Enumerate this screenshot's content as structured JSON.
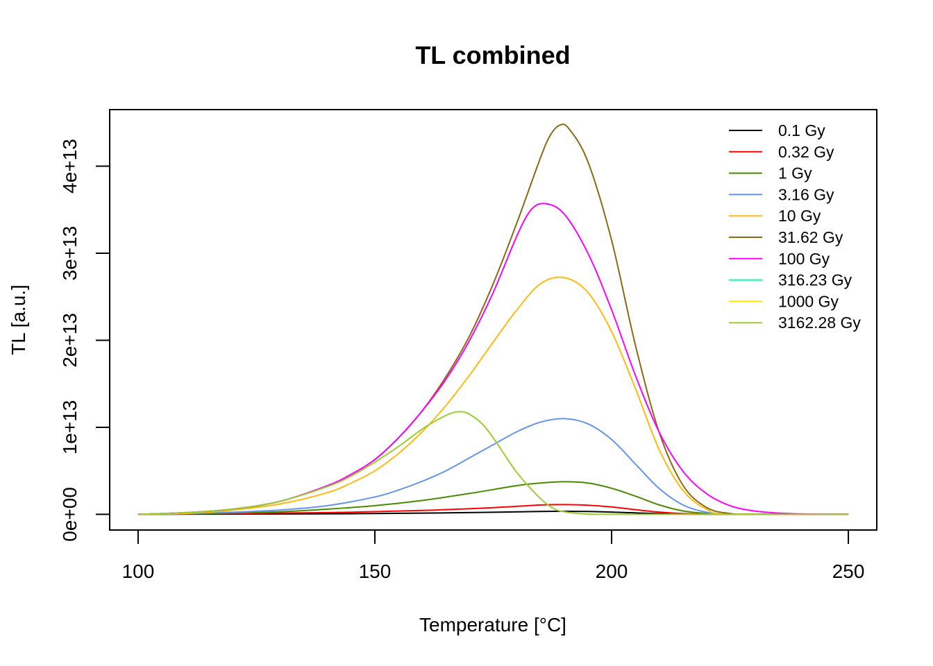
{
  "chart_data": {
    "type": "line",
    "title": "TL combined",
    "xlabel": "Temperature [°C]",
    "ylabel": "TL [a.u.]",
    "xlim": [
      94,
      256
    ],
    "ylim": [
      -1800000000000.0,
      46500000000000.0
    ],
    "x_ticks": [
      100,
      150,
      200,
      250
    ],
    "x_tick_labels": [
      "100",
      "150",
      "200",
      "250"
    ],
    "y_ticks": [
      0,
      10000000000000.0,
      20000000000000.0,
      30000000000000.0,
      40000000000000.0
    ],
    "y_tick_labels": [
      "0e+00",
      "1e+13",
      "2e+13",
      "3e+13",
      "4e+13"
    ],
    "legend_position": "top-right",
    "grid": false,
    "series": [
      {
        "name": "0.1 Gy",
        "color": "#000000",
        "x": [
          100,
          120,
          140,
          160,
          175,
          185,
          190,
          195,
          200,
          205,
          210,
          215,
          220,
          225,
          250
        ],
        "y": [
          0,
          30000000000.0,
          60000000000.0,
          140000000000.0,
          240000000000.0,
          330000000000.0,
          350000000000.0,
          330000000000.0,
          260000000000.0,
          170000000000.0,
          80000000000.0,
          30000000000.0,
          8000000000.0,
          0,
          0
        ]
      },
      {
        "name": "0.32 Gy",
        "color": "#ff0000",
        "x": [
          100,
          120,
          140,
          160,
          175,
          185,
          190,
          195,
          200,
          205,
          210,
          215,
          220,
          225,
          250
        ],
        "y": [
          0,
          100000000000.0,
          200000000000.0,
          450000000000.0,
          770000000000.0,
          1080000000000.0,
          1120000000000.0,
          1050000000000.0,
          850000000000.0,
          540000000000.0,
          260000000000.0,
          90000000000.0,
          25000000000.0,
          0,
          0
        ]
      },
      {
        "name": "1 Gy",
        "color": "#4a8a00",
        "x": [
          100,
          110,
          120,
          130,
          140,
          150,
          160,
          170,
          180,
          185,
          190,
          195,
          200,
          205,
          210,
          215,
          220,
          225,
          250
        ],
        "y": [
          0,
          50000000000.0,
          150000000000.0,
          300000000000.0,
          600000000000.0,
          1000000000000.0,
          1600000000000.0,
          2400000000000.0,
          3300000000000.0,
          3600000000000.0,
          3750000000000.0,
          3600000000000.0,
          3000000000000.0,
          2100000000000.0,
          1100000000000.0,
          400000000000.0,
          100000000000.0,
          10000000000.0,
          0
        ]
      },
      {
        "name": "3.16 Gy",
        "color": "#6495ed",
        "x": [
          100,
          110,
          120,
          130,
          140,
          150,
          155,
          160,
          165,
          170,
          175,
          180,
          185,
          190,
          195,
          200,
          205,
          210,
          215,
          220,
          225,
          250
        ],
        "y": [
          0,
          100000000000.0,
          250000000000.0,
          500000000000.0,
          1000000000000.0,
          2000000000000.0,
          2800000000000.0,
          3800000000000.0,
          5000000000000.0,
          6500000000000.0,
          8000000000000.0,
          9500000000000.0,
          10600000000000.0,
          11000000000000.0,
          10400000000000.0,
          8600000000000.0,
          5800000000000.0,
          3000000000000.0,
          1100000000000.0,
          250000000000.0,
          30000000000.0,
          0
        ]
      },
      {
        "name": "10 Gy",
        "color": "#ffb90f",
        "x": [
          100,
          110,
          120,
          130,
          140,
          145,
          150,
          155,
          160,
          165,
          170,
          175,
          180,
          185,
          190,
          195,
          200,
          205,
          210,
          215,
          220,
          225,
          250
        ],
        "y": [
          0,
          100000000000.0,
          500000000000.0,
          1200000000000.0,
          2500000000000.0,
          3600000000000.0,
          5000000000000.0,
          7000000000000.0,
          9500000000000.0,
          12500000000000.0,
          16000000000000.0,
          19800000000000.0,
          23500000000000.0,
          26500000000000.0,
          27200000000000.0,
          25500000000000.0,
          21000000000000.0,
          14500000000000.0,
          7500000000000.0,
          2800000000000.0,
          600000000000.0,
          50000000000.0,
          0
        ]
      },
      {
        "name": "31.62 Gy",
        "color": "#8b6914",
        "x": [
          100,
          110,
          120,
          130,
          140,
          145,
          150,
          155,
          160,
          165,
          170,
          175,
          180,
          185,
          187,
          189,
          191,
          195,
          200,
          205,
          210,
          215,
          220,
          225,
          230,
          250
        ],
        "y": [
          0,
          200000000000.0,
          600000000000.0,
          1500000000000.0,
          3300000000000.0,
          4600000000000.0,
          6300000000000.0,
          8800000000000.0,
          11900000000000.0,
          15800000000000.0,
          20500000000000.0,
          26500000000000.0,
          33500000000000.0,
          41000000000000.0,
          43500000000000.0,
          44700000000000.0,
          44300000000000.0,
          40500000000000.0,
          31500000000000.0,
          19500000000000.0,
          9500000000000.0,
          3400000000000.0,
          800000000000.0,
          100000000000.0,
          0,
          0
        ]
      },
      {
        "name": "100 Gy",
        "color": "#ff00ff",
        "x": [
          100,
          110,
          120,
          130,
          140,
          145,
          150,
          155,
          160,
          165,
          170,
          175,
          180,
          183,
          186,
          190,
          195,
          200,
          205,
          210,
          215,
          220,
          225,
          230,
          235,
          240,
          245,
          250
        ],
        "y": [
          0,
          200000000000.0,
          600000000000.0,
          1500000000000.0,
          3300000000000.0,
          4600000000000.0,
          6300000000000.0,
          8800000000000.0,
          11900000000000.0,
          15500000000000.0,
          20000000000000.0,
          25500000000000.0,
          32000000000000.0,
          35000000000000.0,
          35700000000000.0,
          34500000000000.0,
          30000000000000.0,
          23500000000000.0,
          16000000000000.0,
          9500000000000.0,
          5000000000000.0,
          2400000000000.0,
          1000000000000.0,
          400000000000.0,
          150000000000.0,
          50000000000.0,
          10000000000.0,
          0
        ]
      },
      {
        "name": "316.23 Gy",
        "color": "#00ff9f",
        "x": [],
        "y": []
      },
      {
        "name": "1000 Gy",
        "color": "#ffe700",
        "x": [],
        "y": []
      },
      {
        "name": "3162.28 Gy",
        "color": "#9acd32",
        "x": [
          100,
          110,
          120,
          130,
          140,
          145,
          150,
          155,
          160,
          163,
          166,
          168,
          170,
          173,
          176,
          180,
          185,
          188,
          190,
          193,
          196,
          200,
          250
        ],
        "y": [
          0,
          200000000000.0,
          600000000000.0,
          1500000000000.0,
          3200000000000.0,
          4400000000000.0,
          6000000000000.0,
          7800000000000.0,
          9800000000000.0,
          10800000000000.0,
          11600000000000.0,
          11800000000000.0,
          11500000000000.0,
          10200000000000.0,
          8000000000000.0,
          4800000000000.0,
          1800000000000.0,
          600000000000.0,
          300000000000.0,
          100000000000.0,
          20000000000.0,
          0,
          0
        ]
      }
    ]
  }
}
